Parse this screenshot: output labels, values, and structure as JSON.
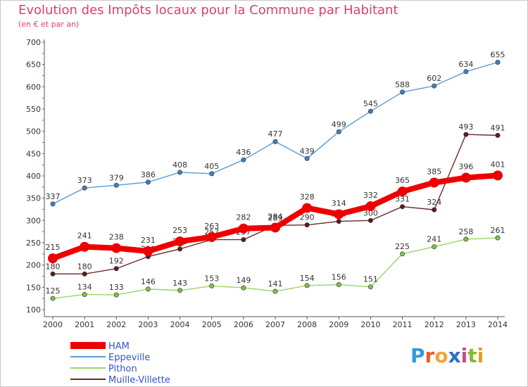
{
  "title": "Evolution des Impôts locaux pour la Commune par Habitant",
  "subtitle": "(en € et par an)",
  "logo": {
    "text": "Proxiti",
    "letters": [
      "P",
      "r",
      "o",
      "x",
      "i",
      "t",
      "i"
    ],
    "colors": [
      "#3399dd",
      "#e85c2a",
      "#f2a33a",
      "#2a6fd0",
      "#c84a8c",
      "#86b832",
      "#e0a020"
    ]
  },
  "chart_data": {
    "type": "line",
    "title": "Evolution des Impôts locaux pour la Commune par Habitant",
    "xlabel": "",
    "ylabel": "(en € et par an)",
    "ylim": [
      100,
      700
    ],
    "yticks": [
      100,
      150,
      200,
      250,
      300,
      350,
      400,
      450,
      500,
      550,
      600,
      650,
      700
    ],
    "categories": [
      "2000",
      "2001",
      "2002",
      "2003",
      "2004",
      "2005",
      "2006",
      "2007",
      "2008",
      "2009",
      "2010",
      "2011",
      "2012",
      "2013",
      "2014"
    ],
    "grid": false,
    "legend": "bottom-left",
    "series": [
      {
        "name": "Eppeville",
        "color": "#5a9bd4",
        "marker": "#3d7fc0",
        "values": [
          337,
          373,
          379,
          386,
          408,
          405,
          436,
          477,
          439,
          499,
          545,
          588,
          602,
          634,
          655
        ]
      },
      {
        "name": "Pithon",
        "color": "#9ad468",
        "marker": "#7dc04a",
        "values": [
          125,
          134,
          133,
          146,
          143,
          153,
          149,
          141,
          154,
          156,
          151,
          225,
          241,
          258,
          261
        ]
      },
      {
        "name": "Muille-Villette",
        "color": "#6b2a2a",
        "marker": "#5a1e1e",
        "values": [
          180,
          180,
          192,
          219,
          236,
          257,
          257,
          289,
          290,
          298,
          300,
          331,
          324,
          493,
          491
        ]
      },
      {
        "name": "HAM",
        "color": "#ee0000",
        "marker": "#ee0000",
        "values": [
          215,
          241,
          238,
          231,
          253,
          263,
          282,
          284,
          328,
          314,
          332,
          365,
          385,
          396,
          401
        ]
      }
    ],
    "legend_order": [
      "HAM",
      "Eppeville",
      "Pithon",
      "Muille-Villette"
    ]
  }
}
